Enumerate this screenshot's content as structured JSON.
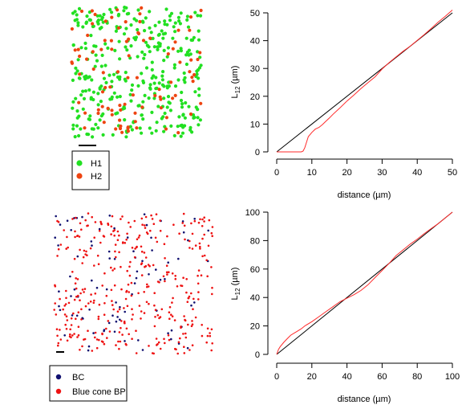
{
  "chart_data": [
    {
      "type": "scatter",
      "legend": [
        {
          "label": "H1",
          "color": "#22e022"
        },
        {
          "label": "H2",
          "color": "#ee4411"
        }
      ],
      "legend_position": "bottom-left",
      "scale_bar": true,
      "series": [
        {
          "name": "H1",
          "color": "#22e022",
          "count": 360
        },
        {
          "name": "H2",
          "color": "#ee4411",
          "count": 95
        }
      ]
    },
    {
      "type": "line",
      "xlabel": "distance (µm)",
      "ylabel_main": "L",
      "ylabel_sub": "12",
      "ylabel_tail": " (µm)",
      "xlim": [
        0,
        50
      ],
      "ylim": [
        0,
        50
      ],
      "xticks": [
        "0",
        "10",
        "20",
        "30",
        "40",
        "50"
      ],
      "yticks": [
        "0",
        "10",
        "20",
        "30",
        "40",
        "50"
      ],
      "series": [
        {
          "color": "#000000",
          "x": [
            0,
            50
          ],
          "y": [
            0,
            50
          ]
        },
        {
          "color": "#ff2a2a",
          "x": [
            0,
            5,
            7,
            7.5,
            8,
            8.5,
            9,
            10,
            11,
            12,
            13,
            14,
            15,
            16,
            18,
            20,
            22,
            24,
            26,
            28,
            30,
            32,
            34,
            36,
            38,
            40,
            42,
            44,
            46,
            48,
            50
          ],
          "y": [
            0,
            0,
            0,
            0.3,
            1.5,
            3.5,
            5.5,
            7.0,
            8.2,
            8.8,
            9.8,
            11.0,
            12.2,
            13.5,
            15.8,
            18.3,
            20.5,
            22.8,
            24.9,
            27.0,
            29.8,
            32.1,
            34.2,
            36.2,
            38.0,
            40.1,
            42.2,
            44.4,
            46.7,
            48.8,
            51.0
          ]
        }
      ]
    },
    {
      "type": "scatter",
      "legend": [
        {
          "label": "BC",
          "color": "#101070"
        },
        {
          "label": "Blue cone BP",
          "color": "#ee1111"
        }
      ],
      "legend_position": "bottom-left",
      "scale_bar": true,
      "series": [
        {
          "name": "BC",
          "color": "#101070",
          "count": 85
        },
        {
          "name": "Blue cone BP",
          "color": "#ee1111",
          "count": 380
        }
      ]
    },
    {
      "type": "line",
      "xlabel": "distance (µm)",
      "ylabel_main": "L",
      "ylabel_sub": "12",
      "ylabel_tail": " (µm)",
      "xlim": [
        0,
        100
      ],
      "ylim": [
        0,
        100
      ],
      "xticks": [
        "0",
        "20",
        "40",
        "60",
        "80",
        "100"
      ],
      "yticks": [
        "0",
        "20",
        "40",
        "60",
        "80",
        "100"
      ],
      "series": [
        {
          "color": "#000000",
          "x": [
            0,
            100
          ],
          "y": [
            0,
            100
          ]
        },
        {
          "color": "#ff2a2a",
          "x": [
            0,
            1,
            2,
            4,
            6,
            8,
            10,
            12,
            14,
            16,
            20,
            24,
            28,
            32,
            36,
            40,
            44,
            48,
            52,
            56,
            60,
            64,
            68,
            72,
            76,
            80,
            84,
            88,
            92,
            96,
            100
          ],
          "y": [
            0,
            3.5,
            5.5,
            8.5,
            11.0,
            13.5,
            15.0,
            16.5,
            18.0,
            20.0,
            23.0,
            26.5,
            30.0,
            33.5,
            37.0,
            39.5,
            42.0,
            45.0,
            49.0,
            54.0,
            59.0,
            64.0,
            69.5,
            73.5,
            77.5,
            81.0,
            85.0,
            88.5,
            92.0,
            96.0,
            100.0
          ]
        }
      ]
    }
  ]
}
